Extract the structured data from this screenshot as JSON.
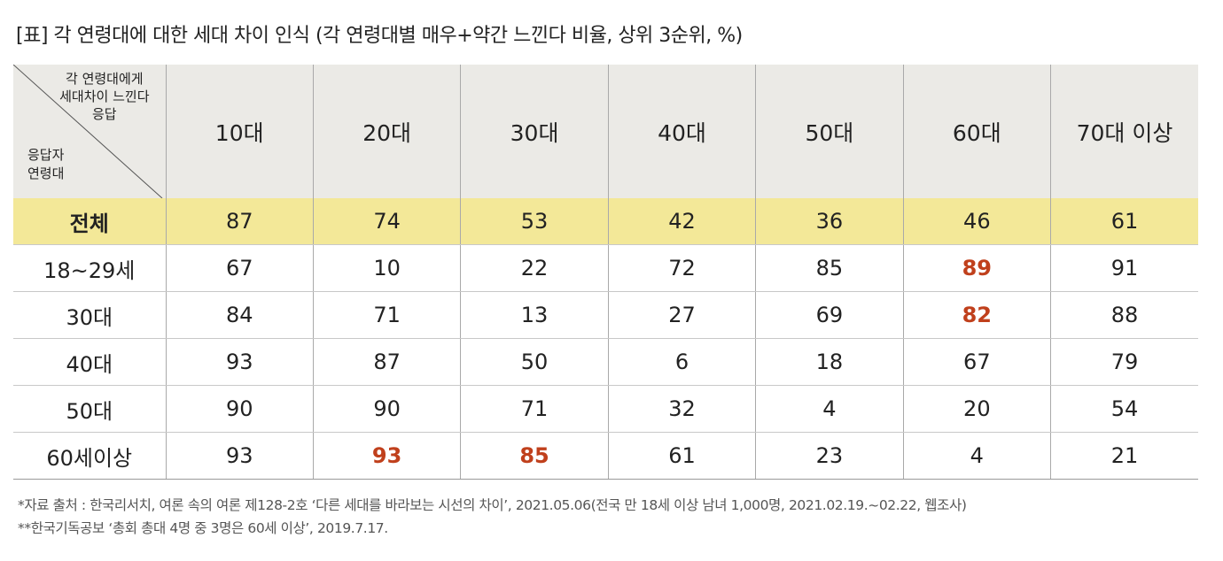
{
  "title": "[표] 각 연령대에 대한 세대 차이 인식 (각 연령대별 매우+약간 느낀다 비율, 상위 3순위, %)",
  "corner": {
    "top_lines": [
      "각 연령대에게",
      "세대차이 느낀다",
      "응답"
    ],
    "bottom_lines": [
      "응답자",
      "연령대"
    ]
  },
  "columns": [
    "10대",
    "20대",
    "30대",
    "40대",
    "50대",
    "60대",
    "70대 이상"
  ],
  "rows": [
    {
      "label": "전체",
      "values": [
        "87",
        "74",
        "53",
        "42",
        "36",
        "46",
        "61"
      ],
      "highlight": []
    },
    {
      "label": "18~29세",
      "values": [
        "67",
        "10",
        "22",
        "72",
        "85",
        "89",
        "91"
      ],
      "highlight": [
        5
      ]
    },
    {
      "label": "30대",
      "values": [
        "84",
        "71",
        "13",
        "27",
        "69",
        "82",
        "88"
      ],
      "highlight": [
        5
      ]
    },
    {
      "label": "40대",
      "values": [
        "93",
        "87",
        "50",
        "6",
        "18",
        "67",
        "79"
      ],
      "highlight": []
    },
    {
      "label": "50대",
      "values": [
        "90",
        "90",
        "71",
        "32",
        "4",
        "20",
        "54"
      ],
      "highlight": []
    },
    {
      "label": "60세이상",
      "values": [
        "93",
        "93",
        "85",
        "61",
        "23",
        "4",
        "21"
      ],
      "highlight": [
        1,
        2
      ]
    }
  ],
  "colors": {
    "header_bg": "#ebeae6",
    "total_bg": "#f3e898",
    "highlight": "#c0401c"
  },
  "notes": [
    "*자료 출처 : 한국리서치, 여론 속의 여론 제128-2호 ‘다른 세대를 바라보는 시선의 차이’, 2021.05.06(전국 만 18세 이상 남녀 1,000명, 2021.02.19.~02.22, 웹조사)",
    "**한국기독공보 ‘총회 총대 4명 중 3명은 60세 이상’, 2019.7.17."
  ]
}
